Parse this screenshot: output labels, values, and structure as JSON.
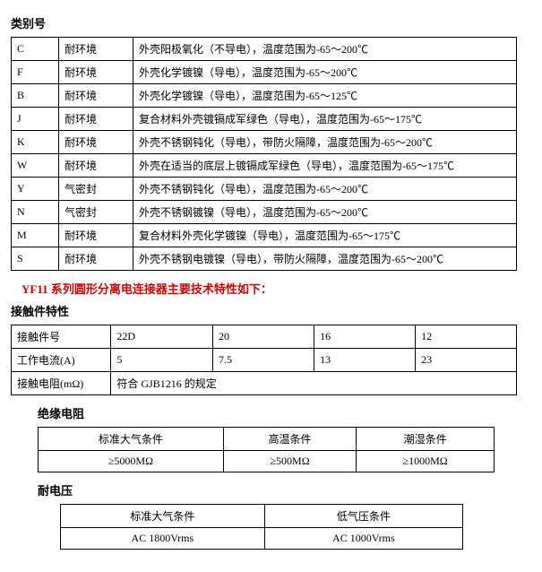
{
  "titles": {
    "category": "类别号",
    "tech_spec": "YF11 系列圆形分离电连接器主要技术特性如下：",
    "contact": "接触件特性",
    "insulation": "绝缘电阻",
    "withstand": "耐电压"
  },
  "category_table": {
    "rows": [
      {
        "code": "C",
        "type": "耐环境",
        "desc": "外壳阳极氧化（不导电），温度范围为-65～200℃"
      },
      {
        "code": "F",
        "type": "耐环境",
        "desc": "外壳化学镀镍（导电），温度范围为-65～200℃"
      },
      {
        "code": "B",
        "type": "耐环境",
        "desc": "外壳化学镀镍（导电），温度范围为-65～125℃"
      },
      {
        "code": "J",
        "type": "耐环境",
        "desc": "复合材料外壳镀镉成军绿色（导电），温度范围为-65～175℃"
      },
      {
        "code": "K",
        "type": "耐环境",
        "desc": "外壳不锈钢钝化（导电），带防火隔障，温度范围为-65～200℃"
      },
      {
        "code": "W",
        "type": "耐环境",
        "desc": "外壳在适当的底层上镀镉成军绿色（导电），温度范围为-65～175℃"
      },
      {
        "code": "Y",
        "type": "气密封",
        "desc": "外壳不锈钢钝化（导电），温度范围为-65～200℃"
      },
      {
        "code": "N",
        "type": "气密封",
        "desc": "外壳不锈钢镀镍（导电），温度范围为-65～200℃"
      },
      {
        "code": "M",
        "type": "耐环境",
        "desc": "复合材料外壳化学镀镍（导电），温度范围为-65～175℃"
      },
      {
        "code": "S",
        "type": "耐环境",
        "desc": "外壳不锈钢电镀镍（导电），带防火隔障，温度范围为-65～200℃"
      }
    ]
  },
  "contact_table": {
    "row1_label": "接触件号",
    "row1_vals": [
      "22D",
      "20",
      "16",
      "12"
    ],
    "row2_label": "工作电流(A)",
    "row2_vals": [
      "5",
      "7.5",
      "13",
      "23"
    ],
    "row3_label": "接触电阻(mΩ)",
    "row3_val": "符合 GJB1216 的规定"
  },
  "insulation_table": {
    "headers": [
      "标准大气条件",
      "高温条件",
      "潮湿条件"
    ],
    "values": [
      "≥5000MΩ",
      "≥500MΩ",
      "≥1000MΩ"
    ]
  },
  "withstand_table": {
    "headers": [
      "标准大气条件",
      "低气压条件"
    ],
    "values": [
      "AC 1800Vrms",
      "AC 1000Vrms"
    ]
  }
}
